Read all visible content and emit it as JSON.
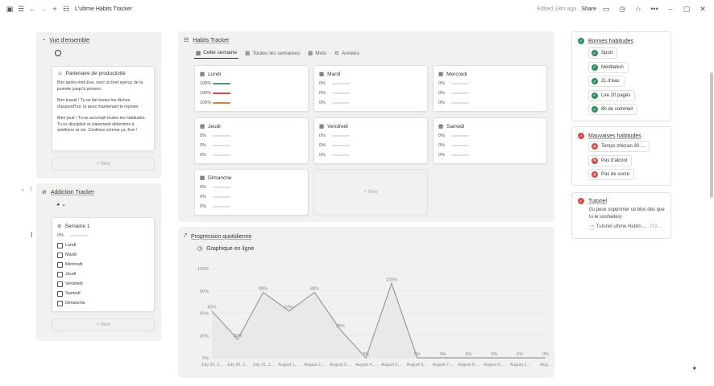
{
  "window": {
    "title": "L'ultime Habits Tracker",
    "edited": "Edited 18m ago",
    "share": "Share"
  },
  "overview": {
    "title": "Vue d'ensemble",
    "partner": {
      "title": "Partenaire de productivité",
      "p1": "Bon après-midi Eve, voici un bref aperçu de ta journée jusqu'à présent :",
      "p2": "Bon travail ! Tu as fait toutes les tâches d'aujourd'hui, tu peux maintenant te reposer",
      "p3": "Bien joué ! Tu as accompli toutes tes habitudes. Tu es discipliné et clairement déterminé à améliorer ta vie. Continue comme ça, Eve !"
    },
    "new": "+ New"
  },
  "addiction": {
    "title": "Addiction Tracker",
    "week": {
      "title": "Semaine 1",
      "pct": "0%",
      "days": [
        "Lundi",
        "Mardi",
        "Mercredi",
        "Jeudi",
        "Vendredi",
        "Samedi",
        "Dimanche"
      ]
    },
    "new": "+ New"
  },
  "habits": {
    "title": "Habits Tracker",
    "tabs": [
      "Cette semaine",
      "Toutes les semaines",
      "Mois",
      "Années"
    ],
    "days": [
      {
        "name": "Lundi",
        "rows": [
          "100%",
          "100%",
          "100%"
        ],
        "fills": [
          1,
          1,
          1
        ]
      },
      {
        "name": "Mardi",
        "rows": [
          "0%",
          "0%",
          "0%"
        ],
        "fills": [
          0,
          0,
          0
        ]
      },
      {
        "name": "Mercredi",
        "rows": [
          "0%",
          "0%",
          "0%"
        ],
        "fills": [
          0,
          0,
          0
        ]
      },
      {
        "name": "Jeudi",
        "rows": [
          "0%",
          "0%",
          "0%"
        ],
        "fills": [
          0,
          0,
          0
        ]
      },
      {
        "name": "Vendredi",
        "rows": [
          "0%",
          "0%",
          "0%"
        ],
        "fills": [
          0,
          0,
          0
        ]
      },
      {
        "name": "Samedi",
        "rows": [
          "0%",
          "0%",
          "0%"
        ],
        "fills": [
          0,
          0,
          0
        ]
      },
      {
        "name": "Dimanche",
        "rows": [
          "0%",
          "0%",
          "0%"
        ],
        "fills": [
          0,
          0,
          0
        ]
      }
    ],
    "barColors": [
      "#4a9d6b",
      "#d44c47",
      "#c98b3a"
    ],
    "new": "+ New"
  },
  "progress": {
    "title": "Progression quotidienne",
    "view": "Graphique en ligne"
  },
  "chart_data": {
    "type": "line",
    "x": [
      "July 29, 2...",
      "July 30, 2...",
      "July 31, 2...",
      "August 1,...",
      "August 2,...",
      "August 3,...",
      "August 4,...",
      "August 5,...",
      "August 6,...",
      "August 7,...",
      "August 8,...",
      "August 8,...",
      "August 1...",
      "Aug..."
    ],
    "values": [
      63,
      25,
      88,
      63,
      88,
      38,
      0,
      100,
      0,
      0,
      0,
      0,
      0,
      0
    ],
    "labels": [
      "63%",
      "25%",
      "88%",
      "63%",
      "88%",
      "38%",
      "0%",
      "100%",
      "0%",
      "0%",
      "0%",
      "0%",
      "0%",
      "0%"
    ],
    "yticks": [
      "0%",
      "30%",
      "60%",
      "90%",
      "120%"
    ],
    "ylim": [
      0,
      120
    ]
  },
  "good": {
    "title": "Bonnes habitudes",
    "items": [
      "Sport",
      "Méditation",
      "2L d'eau",
      "Lire 20 pages",
      "8h de sommeil"
    ]
  },
  "bad": {
    "title": "Mauvaises habitudes",
    "items": [
      "Temps d'écran 30 ...",
      "Pas d'alcool",
      "Pas de sucre"
    ]
  },
  "tuto": {
    "title": "Tutoriel",
    "sub": "(tu peux supprimer ce bloc dès que tu le souhaites)",
    "link": "Tutoriel ultime Habits ...",
    "count": "722..."
  }
}
